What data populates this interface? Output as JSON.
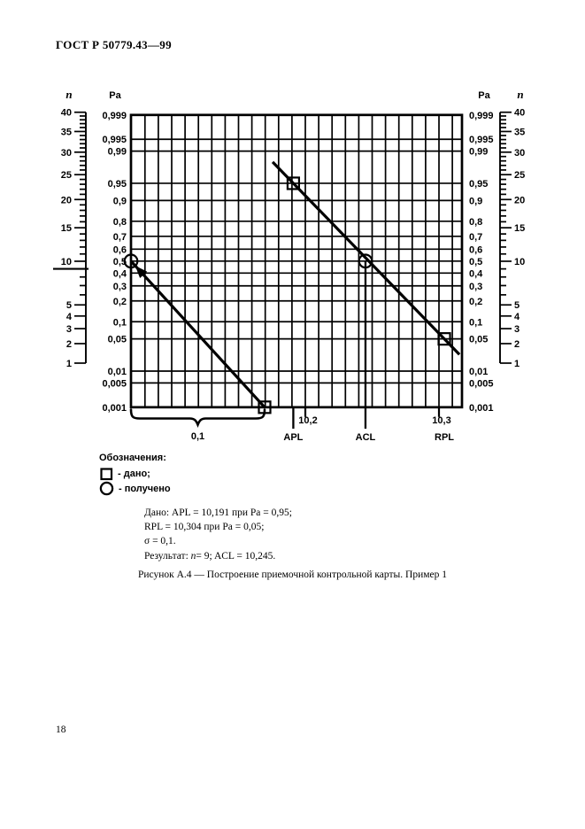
{
  "page": {
    "header": "ГОСТ Р 50779.43—99",
    "caption": "Рисунок А.4 — Построение приемочной контрольной карты. Пример 1",
    "page_number": "18"
  },
  "colors": {
    "ink": "#000000",
    "paper": "#ffffff"
  },
  "legend": {
    "title": "Обозначения:",
    "items": [
      {
        "symbol": "square-icon",
        "label": "- дано;"
      },
      {
        "symbol": "circle-icon",
        "label": "- получено"
      }
    ]
  },
  "given_block": {
    "line1": "Дано: APL = 10,191 при Pa = 0,95;",
    "line2": "RPL = 10,304 при Pa = 0,05;",
    "line3": "σ = 0,1.",
    "line4_prefix": "Результат: ",
    "line4_n": "n",
    "line4_rest": "= 9; ACL = 10,245."
  },
  "chart_data": {
    "type": "nomogram-line",
    "title": "Приемочная контрольная карта на нормальной вероятностной сетке",
    "pa_scale": {
      "label": "Pa",
      "tick_labels": [
        "0,999",
        "0,995",
        "0,99",
        "0,95",
        "0,9",
        "0,8",
        "0,7",
        "0,6",
        "0,5",
        "0,4",
        "0,3",
        "0,2",
        "0,1",
        "0,05",
        "0,01",
        "0,005",
        "0,001"
      ],
      "tick_values": [
        0.999,
        0.995,
        0.99,
        0.95,
        0.9,
        0.8,
        0.7,
        0.6,
        0.5,
        0.4,
        0.3,
        0.2,
        0.1,
        0.05,
        0.01,
        0.005,
        0.001
      ]
    },
    "n_scale": {
      "label": "n",
      "range": [
        1,
        40
      ],
      "labeled_ticks": [
        40,
        35,
        30,
        25,
        20,
        15,
        10,
        5,
        4,
        3,
        2,
        1
      ],
      "minor_tick_step": 1,
      "result_marker_n": 9
    },
    "x_axis": {
      "tick_labels": [
        "10,2",
        "10,3"
      ],
      "tick_values": [
        10.2,
        10.3
      ],
      "markers": [
        {
          "label": "APL",
          "value": 10.191,
          "guide_line": true
        },
        {
          "label": "ACL",
          "value": 10.245,
          "guide_line": true
        },
        {
          "label": "RPL",
          "value": 10.304,
          "guide_line": false
        }
      ],
      "sigma_brace": {
        "label": "0,1",
        "value": 0.1
      }
    },
    "points_given": [
      {
        "name": "APL",
        "x": 10.191,
        "pa": 0.95,
        "marker": "square"
      },
      {
        "name": "RPL",
        "x": 10.304,
        "pa": 0.05,
        "marker": "square"
      },
      {
        "name": "sigma-line-end",
        "pa": 0.001,
        "marker": "square"
      }
    ],
    "points_obtained": [
      {
        "name": "n-line-start",
        "pa": 0.5,
        "marker": "circle"
      },
      {
        "name": "ACL",
        "x": 10.245,
        "pa": 0.5,
        "marker": "circle"
      }
    ],
    "main_line": {
      "through": [
        "APL",
        "RPL"
      ]
    },
    "sigma_line": {
      "from_pa": 0.5,
      "to_pa": 0.001,
      "dx": 0.1
    }
  }
}
